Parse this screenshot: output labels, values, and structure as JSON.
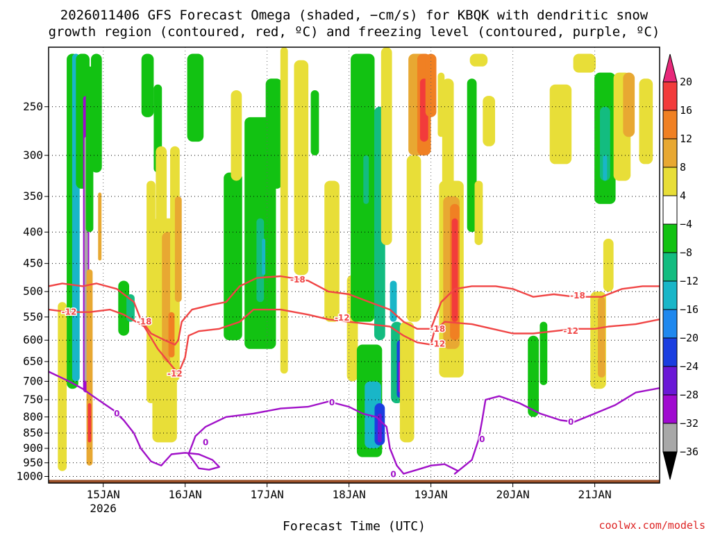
{
  "chart_data": {
    "type": "time-height cross section",
    "title_line1": "2026011406 GFS Forecast Omega (shaded, −cm/s) for KBQK with dendritic snow",
    "title_line2": "growth region (contoured, red, ºC) and freezing level (contoured, purple, ºC)",
    "xlabel": "Forecast Time (UTC)",
    "ylabel": "",
    "credit": "coolwx.com/models",
    "x_range_hours": [
      -16,
      163
    ],
    "x_ticks": [
      {
        "label": "15JAN",
        "sublabel": "2026",
        "hour": 0
      },
      {
        "label": "16JAN",
        "sublabel": "",
        "hour": 24
      },
      {
        "label": "17JAN",
        "sublabel": "",
        "hour": 48
      },
      {
        "label": "18JAN",
        "sublabel": "",
        "hour": 72
      },
      {
        "label": "19JAN",
        "sublabel": "",
        "hour": 96
      },
      {
        "label": "20JAN",
        "sublabel": "",
        "hour": 120
      },
      {
        "label": "21JAN",
        "sublabel": "",
        "hour": 144
      }
    ],
    "y_ticks_hpa": [
      250,
      300,
      350,
      400,
      450,
      500,
      550,
      600,
      650,
      700,
      750,
      800,
      850,
      900,
      950,
      1000
    ],
    "y_range_hpa": [
      200,
      1025
    ],
    "colorbar": {
      "labels": [
        "20",
        "16",
        "12",
        "8",
        "4",
        "−4",
        "−8",
        "−12",
        "−16",
        "−20",
        "−24",
        "−28",
        "−32",
        "−36"
      ],
      "top_color": "#e8287a",
      "bottom_color": "#000000",
      "bins": [
        {
          "range": [
            16,
            20
          ],
          "color": "#f23b3b"
        },
        {
          "range": [
            12,
            16
          ],
          "color": "#f08023"
        },
        {
          "range": [
            8,
            12
          ],
          "color": "#e8a832"
        },
        {
          "range": [
            4,
            8
          ],
          "color": "#e8de38"
        },
        {
          "range": [
            -4,
            4
          ],
          "color": "#ffffff"
        },
        {
          "range": [
            -8,
            -4
          ],
          "color": "#12c212"
        },
        {
          "range": [
            -12,
            -8
          ],
          "color": "#13bc80"
        },
        {
          "range": [
            -16,
            -12
          ],
          "color": "#19b6c8"
        },
        {
          "range": [
            -20,
            -16
          ],
          "color": "#1f88ee"
        },
        {
          "range": [
            -24,
            -20
          ],
          "color": "#1a3ee0"
        },
        {
          "range": [
            -28,
            -24
          ],
          "color": "#6a18d6"
        },
        {
          "range": [
            -32,
            -28
          ],
          "color": "#a00ad0"
        },
        {
          "range": [
            -36,
            -32
          ],
          "color": "#a8a8a8"
        }
      ]
    },
    "omega_regions": [
      {
        "h": -9,
        "p1": 205,
        "p2": 720,
        "w": 1.7,
        "value": -8
      },
      {
        "h": -8,
        "p1": 205,
        "p2": 700,
        "w": 1.1,
        "value": -16
      },
      {
        "h": -6,
        "p1": 205,
        "p2": 340,
        "w": 2.0,
        "value": -8
      },
      {
        "h": -5,
        "p1": 240,
        "p2": 730,
        "w": 0.9,
        "value": -32
      },
      {
        "h": -5,
        "p1": 280,
        "p2": 700,
        "w": 0.5,
        "value": -36
      },
      {
        "h": -4,
        "p1": 215,
        "p2": 400,
        "w": 1.1,
        "value": -8
      },
      {
        "h": -2,
        "p1": 205,
        "p2": 320,
        "w": 1.6,
        "value": -8
      },
      {
        "h": -1,
        "p1": 345,
        "p2": 445,
        "w": 0.5,
        "value": 8
      },
      {
        "h": -4,
        "p1": 460,
        "p2": 960,
        "w": 0.9,
        "value": 8
      },
      {
        "h": -4,
        "p1": 760,
        "p2": 880,
        "w": 0.5,
        "value": 16
      },
      {
        "h": -12,
        "p1": 520,
        "p2": 980,
        "w": 1.3,
        "value": 4
      },
      {
        "h": 6,
        "p1": 480,
        "p2": 590,
        "w": 1.6,
        "value": -8
      },
      {
        "h": 8,
        "p1": 505,
        "p2": 560,
        "w": 1.2,
        "value": -12
      },
      {
        "h": 13,
        "p1": 205,
        "p2": 260,
        "w": 1.8,
        "value": -8
      },
      {
        "h": 16,
        "p1": 230,
        "p2": 320,
        "w": 1.2,
        "value": -8
      },
      {
        "h": 14,
        "p1": 330,
        "p2": 760,
        "w": 1.3,
        "value": 4
      },
      {
        "h": 17,
        "p1": 290,
        "p2": 720,
        "w": 1.6,
        "value": 4
      },
      {
        "h": 18,
        "p1": 380,
        "p2": 880,
        "w": 3.6,
        "value": 4
      },
      {
        "h": 19,
        "p1": 400,
        "p2": 650,
        "w": 1.8,
        "value": 8
      },
      {
        "h": 21,
        "p1": 290,
        "p2": 700,
        "w": 1.4,
        "value": 4
      },
      {
        "h": 20,
        "p1": 540,
        "p2": 640,
        "w": 0.9,
        "value": 12
      },
      {
        "h": 22,
        "p1": 350,
        "p2": 520,
        "w": 1.0,
        "value": 8
      },
      {
        "h": 27,
        "p1": 205,
        "p2": 285,
        "w": 2.4,
        "value": -8
      },
      {
        "h": 38,
        "p1": 320,
        "p2": 600,
        "w": 2.7,
        "value": -8
      },
      {
        "h": 39,
        "p1": 235,
        "p2": 330,
        "w": 1.6,
        "value": 4
      },
      {
        "h": 46,
        "p1": 260,
        "p2": 620,
        "w": 4.6,
        "value": -8
      },
      {
        "h": 46,
        "p1": 380,
        "p2": 520,
        "w": 1.1,
        "value": -12
      },
      {
        "h": 47,
        "p1": 410,
        "p2": 470,
        "w": 0.5,
        "value": -16
      },
      {
        "h": 50,
        "p1": 225,
        "p2": 340,
        "w": 2.4,
        "value": -8
      },
      {
        "h": 53,
        "p1": 200,
        "p2": 680,
        "w": 1.1,
        "value": 4
      },
      {
        "h": 58,
        "p1": 210,
        "p2": 470,
        "w": 2.1,
        "value": 4
      },
      {
        "h": 62,
        "p1": 235,
        "p2": 300,
        "w": 1.2,
        "value": -8
      },
      {
        "h": 67,
        "p1": 330,
        "p2": 560,
        "w": 2.2,
        "value": 4
      },
      {
        "h": 73,
        "p1": 470,
        "p2": 700,
        "w": 1.6,
        "value": 4
      },
      {
        "h": 76,
        "p1": 205,
        "p2": 560,
        "w": 3.5,
        "value": -8
      },
      {
        "h": 77,
        "p1": 300,
        "p2": 360,
        "w": 0.8,
        "value": -12
      },
      {
        "h": 78,
        "p1": 610,
        "p2": 930,
        "w": 3.7,
        "value": -8
      },
      {
        "h": 79,
        "p1": 700,
        "p2": 900,
        "w": 2.4,
        "value": -16
      },
      {
        "h": 81,
        "p1": 760,
        "p2": 890,
        "w": 1.5,
        "value": -24
      },
      {
        "h": 81,
        "p1": 790,
        "p2": 880,
        "w": 0.6,
        "value": -28
      },
      {
        "h": 81,
        "p1": 250,
        "p2": 600,
        "w": 1.6,
        "value": -12
      },
      {
        "h": 83,
        "p1": 200,
        "p2": 420,
        "w": 1.6,
        "value": 4
      },
      {
        "h": 85,
        "p1": 480,
        "p2": 560,
        "w": 1.0,
        "value": -16
      },
      {
        "h": 86,
        "p1": 560,
        "p2": 760,
        "w": 1.7,
        "value": -12
      },
      {
        "h": 87,
        "p1": 600,
        "p2": 745,
        "w": 1.0,
        "value": -24
      },
      {
        "h": 87,
        "p1": 650,
        "p2": 730,
        "w": 0.5,
        "value": -32
      },
      {
        "h": 89,
        "p1": 560,
        "p2": 880,
        "w": 2.1,
        "value": 4
      },
      {
        "h": 91,
        "p1": 300,
        "p2": 560,
        "w": 2.1,
        "value": 4
      },
      {
        "h": 92,
        "p1": 205,
        "p2": 300,
        "w": 2.6,
        "value": 8
      },
      {
        "h": 94,
        "p1": 205,
        "p2": 300,
        "w": 2.0,
        "value": 12
      },
      {
        "h": 94,
        "p1": 225,
        "p2": 285,
        "w": 1.2,
        "value": 16
      },
      {
        "h": 94,
        "p1": 240,
        "p2": 285,
        "w": 0.6,
        "value": 20
      },
      {
        "h": 96,
        "p1": 205,
        "p2": 260,
        "w": 1.6,
        "value": 12
      },
      {
        "h": 99,
        "p1": 220,
        "p2": 280,
        "w": 1.0,
        "value": 4
      },
      {
        "h": 102,
        "p1": 330,
        "p2": 690,
        "w": 3.6,
        "value": 4
      },
      {
        "h": 102,
        "p1": 350,
        "p2": 620,
        "w": 2.4,
        "value": 8
      },
      {
        "h": 103,
        "p1": 360,
        "p2": 600,
        "w": 1.4,
        "value": 12
      },
      {
        "h": 103,
        "p1": 380,
        "p2": 560,
        "w": 0.9,
        "value": 16
      },
      {
        "h": 103,
        "p1": 410,
        "p2": 500,
        "w": 0.5,
        "value": 20
      },
      {
        "h": 101,
        "p1": 225,
        "p2": 350,
        "w": 1.7,
        "value": 4
      },
      {
        "h": 108,
        "p1": 225,
        "p2": 400,
        "w": 1.4,
        "value": -8
      },
      {
        "h": 110,
        "p1": 205,
        "p2": 215,
        "w": 2.6,
        "value": 4
      },
      {
        "h": 110,
        "p1": 330,
        "p2": 420,
        "w": 1.2,
        "value": 4
      },
      {
        "h": 113,
        "p1": 240,
        "p2": 290,
        "w": 1.8,
        "value": 4
      },
      {
        "h": 126,
        "p1": 590,
        "p2": 800,
        "w": 1.6,
        "value": -8
      },
      {
        "h": 129,
        "p1": 560,
        "p2": 710,
        "w": 1.1,
        "value": -8
      },
      {
        "h": 134,
        "p1": 230,
        "p2": 310,
        "w": 3.2,
        "value": 4
      },
      {
        "h": 141,
        "p1": 205,
        "p2": 220,
        "w": 3.3,
        "value": 4
      },
      {
        "h": 147,
        "p1": 220,
        "p2": 360,
        "w": 3.1,
        "value": -8
      },
      {
        "h": 147,
        "p1": 250,
        "p2": 330,
        "w": 1.5,
        "value": -12
      },
      {
        "h": 147,
        "p1": 300,
        "p2": 330,
        "w": 0.6,
        "value": -16
      },
      {
        "h": 152,
        "p1": 220,
        "p2": 330,
        "w": 2.5,
        "value": 4
      },
      {
        "h": 154,
        "p1": 220,
        "p2": 280,
        "w": 1.7,
        "value": 8
      },
      {
        "h": 145,
        "p1": 500,
        "p2": 720,
        "w": 2.3,
        "value": 4
      },
      {
        "h": 146,
        "p1": 510,
        "p2": 690,
        "w": 1.1,
        "value": 8
      },
      {
        "h": 148,
        "p1": 410,
        "p2": 500,
        "w": 1.5,
        "value": 4
      },
      {
        "h": 159,
        "p1": 225,
        "p2": 310,
        "w": 2.0,
        "value": 4
      }
    ],
    "dendritic_minus18_hpa": [
      {
        "h": -16,
        "p": 490
      },
      {
        "h": -12,
        "p": 485
      },
      {
        "h": -6,
        "p": 490
      },
      {
        "h": -2,
        "p": 485
      },
      {
        "h": 4,
        "p": 495
      },
      {
        "h": 9,
        "p": 520
      },
      {
        "h": 11,
        "p": 555
      },
      {
        "h": 14,
        "p": 585
      },
      {
        "h": 18,
        "p": 600
      },
      {
        "h": 21,
        "p": 610
      },
      {
        "h": 22,
        "p": 600
      },
      {
        "h": 23,
        "p": 560
      },
      {
        "h": 26,
        "p": 535
      },
      {
        "h": 32,
        "p": 525
      },
      {
        "h": 36,
        "p": 520
      },
      {
        "h": 40,
        "p": 490
      },
      {
        "h": 45,
        "p": 475
      },
      {
        "h": 52,
        "p": 472
      },
      {
        "h": 60,
        "p": 480
      },
      {
        "h": 66,
        "p": 500
      },
      {
        "h": 72,
        "p": 505
      },
      {
        "h": 78,
        "p": 520
      },
      {
        "h": 84,
        "p": 535
      },
      {
        "h": 88,
        "p": 560
      },
      {
        "h": 92,
        "p": 575
      },
      {
        "h": 96,
        "p": 575
      },
      {
        "h": 99,
        "p": 520
      },
      {
        "h": 103,
        "p": 495
      },
      {
        "h": 108,
        "p": 490
      },
      {
        "h": 115,
        "p": 490
      },
      {
        "h": 120,
        "p": 495
      },
      {
        "h": 126,
        "p": 510
      },
      {
        "h": 132,
        "p": 505
      },
      {
        "h": 138,
        "p": 510
      },
      {
        "h": 146,
        "p": 510
      },
      {
        "h": 152,
        "p": 495
      },
      {
        "h": 158,
        "p": 490
      },
      {
        "h": 163,
        "p": 490
      }
    ],
    "dendritic_minus12_hpa": [
      {
        "h": -16,
        "p": 535
      },
      {
        "h": -10,
        "p": 540
      },
      {
        "h": -4,
        "p": 540
      },
      {
        "h": 2,
        "p": 535
      },
      {
        "h": 6,
        "p": 545
      },
      {
        "h": 12,
        "p": 570
      },
      {
        "h": 16,
        "p": 620
      },
      {
        "h": 20,
        "p": 660
      },
      {
        "h": 22,
        "p": 680
      },
      {
        "h": 24,
        "p": 640
      },
      {
        "h": 25,
        "p": 590
      },
      {
        "h": 28,
        "p": 580
      },
      {
        "h": 34,
        "p": 575
      },
      {
        "h": 40,
        "p": 560
      },
      {
        "h": 44,
        "p": 535
      },
      {
        "h": 52,
        "p": 535
      },
      {
        "h": 60,
        "p": 545
      },
      {
        "h": 66,
        "p": 555
      },
      {
        "h": 72,
        "p": 560
      },
      {
        "h": 78,
        "p": 565
      },
      {
        "h": 84,
        "p": 570
      },
      {
        "h": 88,
        "p": 590
      },
      {
        "h": 92,
        "p": 605
      },
      {
        "h": 96,
        "p": 610
      },
      {
        "h": 97,
        "p": 580
      },
      {
        "h": 100,
        "p": 560
      },
      {
        "h": 108,
        "p": 565
      },
      {
        "h": 114,
        "p": 575
      },
      {
        "h": 120,
        "p": 585
      },
      {
        "h": 126,
        "p": 585
      },
      {
        "h": 132,
        "p": 580
      },
      {
        "h": 138,
        "p": 575
      },
      {
        "h": 144,
        "p": 575
      },
      {
        "h": 148,
        "p": 570
      },
      {
        "h": 156,
        "p": 565
      },
      {
        "h": 163,
        "p": 555
      }
    ],
    "freezing_level_hpa": [
      {
        "h": -16,
        "p": 675
      },
      {
        "h": -10,
        "p": 700
      },
      {
        "h": -6,
        "p": 720
      },
      {
        "h": -3,
        "p": 740
      },
      {
        "h": 0,
        "p": 760
      },
      {
        "h": 3,
        "p": 780
      },
      {
        "h": 6,
        "p": 810
      },
      {
        "h": 9,
        "p": 850
      },
      {
        "h": 11,
        "p": 900
      },
      {
        "h": 14,
        "p": 945
      },
      {
        "h": 17,
        "p": 960
      },
      {
        "h": 20,
        "p": 920
      },
      {
        "h": 24,
        "p": 915
      },
      {
        "h": 28,
        "p": 920
      },
      {
        "h": 32,
        "p": 940
      },
      {
        "h": 34,
        "p": 965
      },
      {
        "h": 31,
        "p": 975
      },
      {
        "h": 28,
        "p": 970
      },
      {
        "h": 25,
        "p": 920
      },
      {
        "h": 27,
        "p": 860
      },
      {
        "h": 30,
        "p": 830
      },
      {
        "h": 36,
        "p": 800
      },
      {
        "h": 44,
        "p": 790
      },
      {
        "h": 52,
        "p": 775
      },
      {
        "h": 60,
        "p": 770
      },
      {
        "h": 66,
        "p": 755
      },
      {
        "h": 72,
        "p": 770
      },
      {
        "h": 76,
        "p": 790
      },
      {
        "h": 80,
        "p": 800
      },
      {
        "h": 83,
        "p": 830
      },
      {
        "h": 84,
        "p": 900
      },
      {
        "h": 86,
        "p": 960
      },
      {
        "h": 88,
        "p": 990
      },
      {
        "h": 92,
        "p": 975
      },
      {
        "h": 96,
        "p": 960
      },
      {
        "h": 100,
        "p": 955
      },
      {
        "h": 104,
        "p": 980
      },
      {
        "h": 103,
        "p": 990
      },
      {
        "h": 108,
        "p": 940
      },
      {
        "h": 110,
        "p": 870
      },
      {
        "h": 111,
        "p": 810
      },
      {
        "h": 112,
        "p": 750
      },
      {
        "h": 116,
        "p": 740
      },
      {
        "h": 122,
        "p": 760
      },
      {
        "h": 128,
        "p": 790
      },
      {
        "h": 134,
        "p": 810
      },
      {
        "h": 138,
        "p": 815
      },
      {
        "h": 144,
        "p": 790
      },
      {
        "h": 150,
        "p": 765
      },
      {
        "h": 156,
        "p": 730
      },
      {
        "h": 163,
        "p": 718
      }
    ],
    "contour_labels": [
      {
        "text": "-12",
        "h": -10,
        "p": 540,
        "kind": "m12"
      },
      {
        "text": "-18",
        "h": 12,
        "p": 560,
        "kind": "m18"
      },
      {
        "text": "-12",
        "h": 21,
        "p": 680,
        "kind": "m12"
      },
      {
        "text": "-18",
        "h": 57,
        "p": 478,
        "kind": "m18"
      },
      {
        "text": "-12",
        "h": 70,
        "p": 552,
        "kind": "m12"
      },
      {
        "text": "-18",
        "h": 98,
        "p": 575,
        "kind": "m18"
      },
      {
        "text": "-12",
        "h": 98,
        "p": 608,
        "kind": "m12"
      },
      {
        "text": "-18",
        "h": 139,
        "p": 508,
        "kind": "m18"
      },
      {
        "text": "-12",
        "h": 137,
        "p": 580,
        "kind": "m12"
      },
      {
        "text": "0",
        "h": 4,
        "p": 790,
        "kind": "fz"
      },
      {
        "text": "0",
        "h": 30,
        "p": 880,
        "kind": "fz"
      },
      {
        "text": "0",
        "h": 67,
        "p": 758,
        "kind": "fz"
      },
      {
        "text": "0",
        "h": 85,
        "p": 992,
        "kind": "fz"
      },
      {
        "text": "0",
        "h": 111,
        "p": 870,
        "kind": "fz"
      },
      {
        "text": "0",
        "h": 137,
        "p": 815,
        "kind": "fz"
      }
    ],
    "colors": {
      "dendritic": "#f04545",
      "freezing": "#a010c8",
      "terrain": "#9a5028",
      "grid": "#000000"
    }
  }
}
